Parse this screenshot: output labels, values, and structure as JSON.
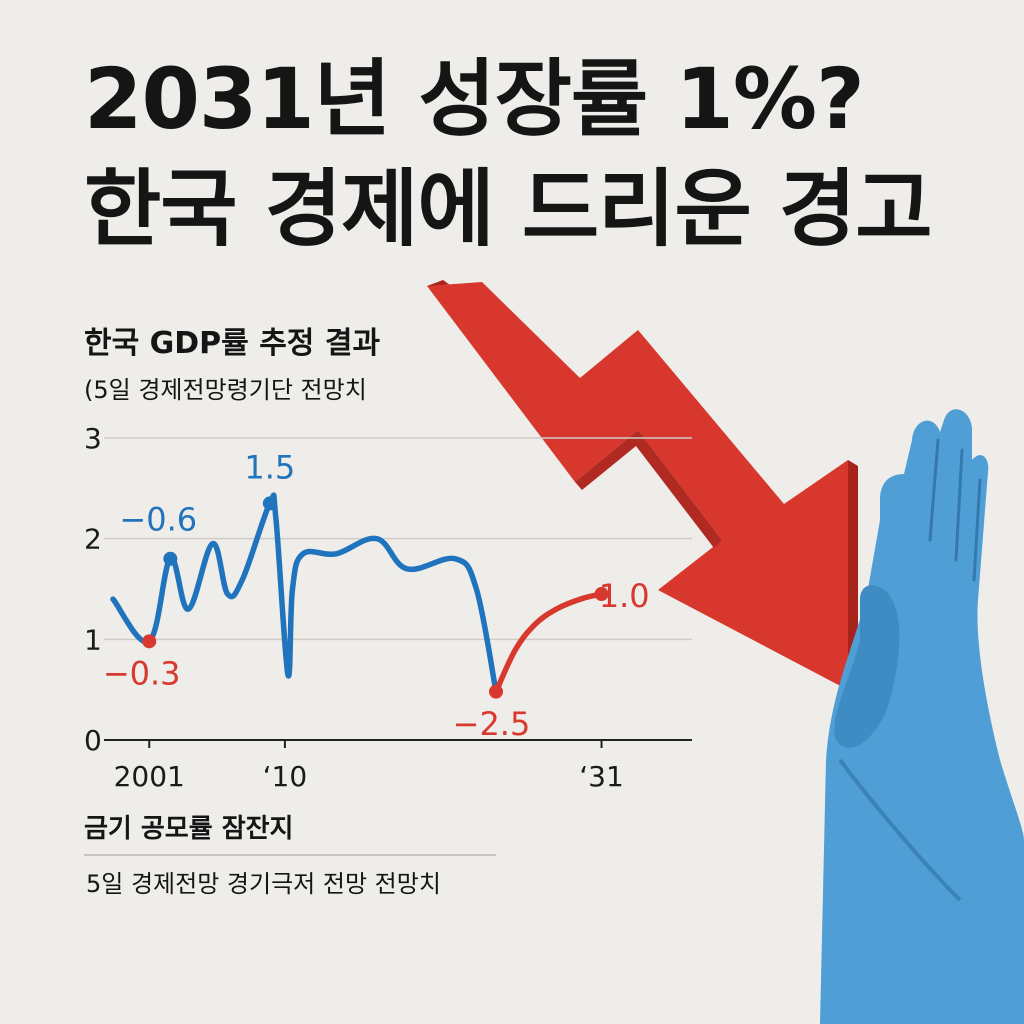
{
  "headline": {
    "line1": "2031년 성장률 1%?",
    "line2": "한국 경제에 드리운 경고"
  },
  "colors": {
    "background": "#efede9",
    "historical_series": "#1f74bd",
    "forecast_series": "#d8382e",
    "arrow": "#d7372c",
    "hand": "#4f9fd6",
    "text": "#151515"
  },
  "illustration": {
    "arrow_icon": "red-downward-zigzag-arrow-icon",
    "hand_icon": "blue-stop-hand-icon"
  },
  "chart_data": {
    "type": "line",
    "title": "한국 GDP률 추정 결과",
    "subtitle": "(5일 경제전망령기단 전망치",
    "ylim": [
      0,
      3
    ],
    "xlim": [
      1998,
      2037
    ],
    "yticks": [
      "0",
      "1",
      "2",
      "3"
    ],
    "xticks": [
      {
        "x": 2001,
        "label": "2001"
      },
      {
        "x": 2010,
        "label": "‘10"
      },
      {
        "x": 2031,
        "label": "‘31"
      }
    ],
    "grid": true,
    "series": [
      {
        "color": "#1f74bd",
        "x": [
          1998.6,
          2001,
          2002.4,
          2003.6,
          2005.2,
          2006.2,
          2007.2,
          2009.0,
          2009.4,
          2010.2,
          2010.5,
          2011.2,
          2013.4,
          2016.1,
          2018.1,
          2021.3,
          2022.7,
          2024.0
        ],
        "y": [
          1.4,
          0.98,
          1.8,
          1.3,
          1.95,
          1.45,
          1.6,
          2.35,
          2.2,
          0.65,
          1.5,
          1.85,
          1.85,
          2.0,
          1.7,
          1.8,
          1.5,
          0.48
        ]
      },
      {
        "color": "#d8382e",
        "x": [
          2024.0,
          2025.3,
          2026.6,
          2028.0,
          2029.6,
          2031.0
        ],
        "y": [
          0.48,
          0.9,
          1.15,
          1.3,
          1.4,
          1.45
        ]
      }
    ],
    "points": [
      {
        "x": 2001,
        "y": 0.98,
        "color": "#d8382e"
      },
      {
        "x": 2002.4,
        "y": 1.8,
        "color": "#1f74bd"
      },
      {
        "x": 2009.0,
        "y": 2.35,
        "color": "#1f74bd"
      },
      {
        "x": 2024.0,
        "y": 0.48,
        "color": "#d8382e"
      },
      {
        "x": 2031.0,
        "y": 1.45,
        "color": "#d8382e"
      }
    ],
    "annotations": [
      {
        "text": "−0.6",
        "x": 2001.6,
        "y": 2.08,
        "color": "#1f74bd"
      },
      {
        "text": "1.5",
        "x": 2009.0,
        "y": 2.6,
        "color": "#1f74bd"
      },
      {
        "text": "−0.3",
        "x": 2000.5,
        "y": 0.55,
        "color": "#d8382e"
      },
      {
        "text": "−2.5",
        "x": 2023.7,
        "y": 0.05,
        "color": "#d8382e"
      },
      {
        "text": "1.0",
        "x": 2032.5,
        "y": 1.32,
        "color": "#d8382e"
      }
    ]
  },
  "footer": {
    "label": "금기 공모률 잠잔지",
    "note": "5일 경제전망 경기극저  전망 전망치"
  }
}
